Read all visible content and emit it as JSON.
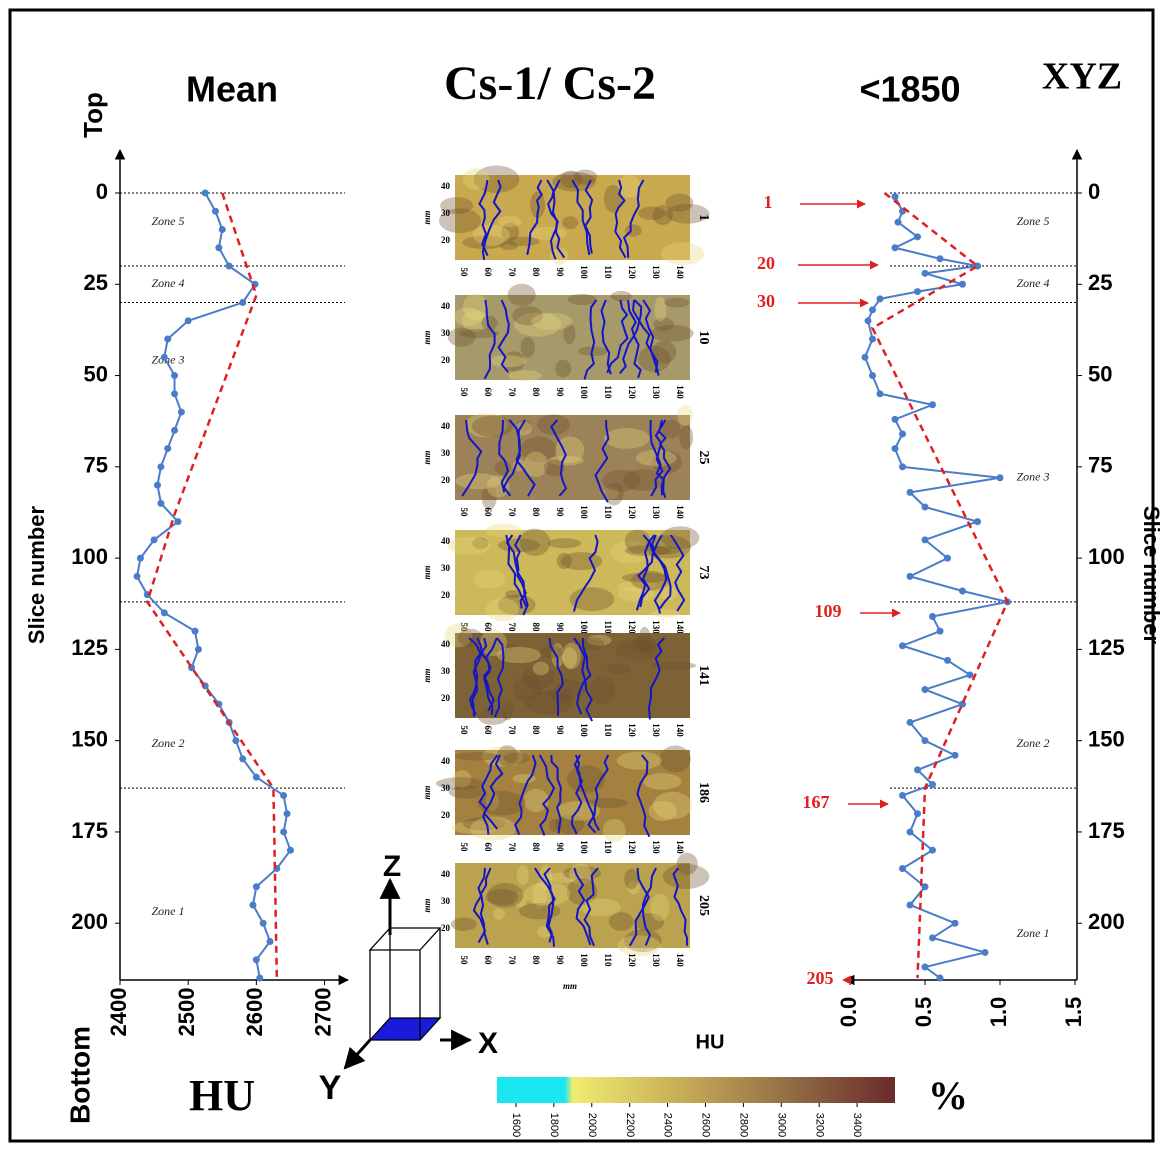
{
  "title": "Cs-1/ Cs-2",
  "top_label": "Top",
  "bottom_label": "Bottom",
  "axes_icon": {
    "label": "XYZ",
    "z": "Z",
    "x": "X",
    "y": "Y"
  },
  "chart_data": [
    {
      "type": "line",
      "title": "Mean",
      "orientation": "vertical",
      "x_label": "Slice number",
      "y_label": "HU",
      "xlim": [
        0,
        215
      ],
      "xticks": [
        0,
        25,
        50,
        75,
        100,
        125,
        150,
        175,
        200
      ],
      "ylim": [
        2400,
        2730
      ],
      "yticks": [
        2400,
        2500,
        2600,
        2700
      ],
      "zone_bounds": [
        0,
        20,
        30,
        112,
        163
      ],
      "zones": [
        "Zone 5",
        "Zone 4",
        "Zone 3",
        "Zone 2",
        "Zone 1"
      ],
      "series": [
        {
          "color": "#4a7cc9",
          "style": "dots",
          "x": [
            0,
            5,
            10,
            15,
            20,
            25,
            30,
            35,
            40,
            45,
            50,
            55,
            60,
            65,
            70,
            75,
            80,
            85,
            90,
            95,
            100,
            105,
            110,
            115,
            120,
            125,
            130,
            135,
            140,
            145,
            150,
            155,
            160,
            165,
            170,
            175,
            180,
            185,
            190,
            195,
            200,
            205,
            210,
            215
          ],
          "values": [
            2525,
            2540,
            2550,
            2545,
            2560,
            2598,
            2580,
            2500,
            2470,
            2465,
            2480,
            2480,
            2490,
            2480,
            2470,
            2460,
            2455,
            2460,
            2485,
            2450,
            2430,
            2425,
            2440,
            2465,
            2510,
            2515,
            2505,
            2525,
            2545,
            2560,
            2570,
            2580,
            2600,
            2640,
            2645,
            2640,
            2650,
            2630,
            2600,
            2595,
            2610,
            2620,
            2600,
            2605
          ]
        },
        {
          "color": "#e02020",
          "style": "dashed",
          "x": [
            0,
            28,
            88,
            112,
            163,
            215
          ],
          "values": [
            2550,
            2600,
            2480,
            2440,
            2625,
            2630
          ]
        }
      ]
    },
    {
      "type": "line",
      "title": "<1850",
      "orientation": "vertical",
      "x_label": "Slice number",
      "y_label": "%",
      "xlim": [
        0,
        215
      ],
      "xticks": [
        0,
        25,
        50,
        75,
        100,
        125,
        150,
        175,
        200
      ],
      "ylim": [
        0,
        1.5
      ],
      "yticks": [
        {
          "value": 0,
          "label": "0.0"
        },
        0.5,
        {
          "value": 1,
          "label": "1.0"
        },
        1.5
      ],
      "zone_bounds": [
        0,
        20,
        30,
        112,
        163
      ],
      "zones": [
        "Zone 5",
        "Zone 4",
        "Zone 3",
        "Zone 2",
        "Zone 1"
      ],
      "annotations": [
        "1",
        "20",
        "30",
        "109",
        "167",
        "205"
      ],
      "series": [
        {
          "color": "#4a7cc9",
          "style": "dots",
          "x": [
            1,
            5,
            8,
            12,
            15,
            18,
            20,
            22,
            25,
            27,
            29,
            32,
            35,
            40,
            45,
            50,
            55,
            58,
            62,
            66,
            70,
            75,
            78,
            82,
            86,
            90,
            95,
            100,
            105,
            109,
            112,
            116,
            120,
            124,
            128,
            132,
            136,
            140,
            145,
            150,
            154,
            158,
            162,
            165,
            170,
            175,
            180,
            185,
            190,
            195,
            200,
            204,
            208,
            212,
            215
          ],
          "values": [
            0.3,
            0.35,
            0.32,
            0.45,
            0.3,
            0.6,
            0.85,
            0.5,
            0.75,
            0.45,
            0.2,
            0.15,
            0.12,
            0.15,
            0.1,
            0.15,
            0.2,
            0.55,
            0.3,
            0.35,
            0.3,
            0.35,
            1.0,
            0.4,
            0.5,
            0.85,
            0.5,
            0.65,
            0.4,
            0.75,
            1.05,
            0.55,
            0.6,
            0.35,
            0.65,
            0.8,
            0.5,
            0.75,
            0.4,
            0.5,
            0.7,
            0.45,
            0.55,
            0.35,
            0.45,
            0.4,
            0.55,
            0.35,
            0.5,
            0.4,
            0.7,
            0.55,
            0.9,
            0.5,
            0.6
          ]
        },
        {
          "color": "#e02020",
          "style": "dashed",
          "x": [
            0,
            20,
            37,
            112,
            163,
            215
          ],
          "values": [
            0.23,
            0.85,
            0.15,
            1.05,
            0.5,
            0.45
          ]
        }
      ]
    }
  ],
  "panels": {
    "labels": [
      "1",
      "10",
      "25",
      "73",
      "141",
      "186",
      "205"
    ],
    "yticks": [
      40,
      30,
      20
    ],
    "xticks": [
      50,
      60,
      70,
      80,
      90,
      100,
      110,
      120,
      130,
      140
    ],
    "unit": "mm"
  },
  "colorbar": {
    "label": "HU",
    "unit": "%",
    "lim": [
      1500,
      3600
    ],
    "ticks": [
      1600,
      1800,
      2000,
      2200,
      2400,
      2600,
      2800,
      3000,
      3200,
      3400
    ]
  }
}
